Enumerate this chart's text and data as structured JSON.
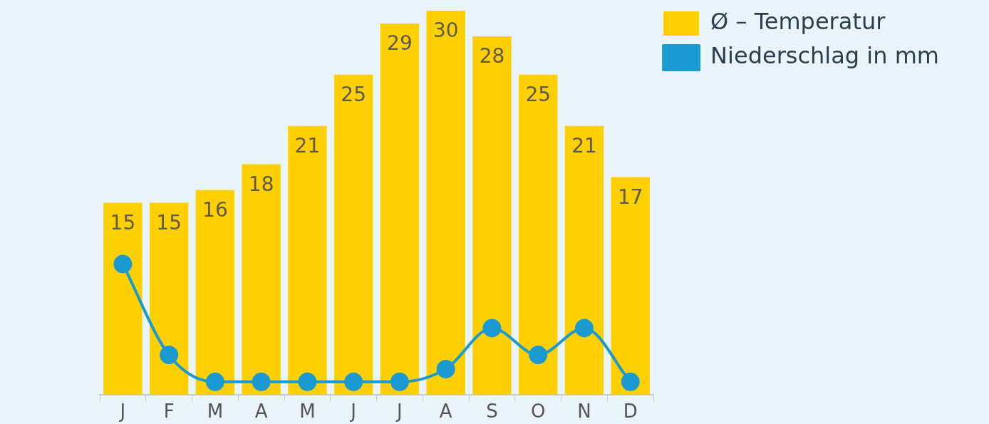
{
  "chart_data": {
    "type": "bar",
    "categories": [
      "J",
      "F",
      "M",
      "A",
      "M",
      "J",
      "J",
      "A",
      "S",
      "O",
      "N",
      "D"
    ],
    "series": [
      {
        "name": "Ø – Temperatur",
        "color": "#ffd000",
        "values": [
          15,
          15,
          16,
          18,
          21,
          25,
          29,
          30,
          28,
          25,
          21,
          17
        ],
        "value_labels": [
          "15",
          "15",
          "16",
          "18",
          "21",
          "25",
          "29",
          "30",
          "28",
          "25",
          "21",
          "17"
        ]
      },
      {
        "name": "Niederschlag in mm",
        "type": "line",
        "color": "#1a9ad0",
        "values": [
          10.2,
          3.1,
          1.0,
          1.0,
          1.0,
          1.0,
          1.0,
          2.0,
          5.2,
          3.1,
          5.2,
          1.0
        ]
      }
    ],
    "grid": false,
    "legend": "top right",
    "marker": "circle",
    "line_style": "solid"
  }
}
